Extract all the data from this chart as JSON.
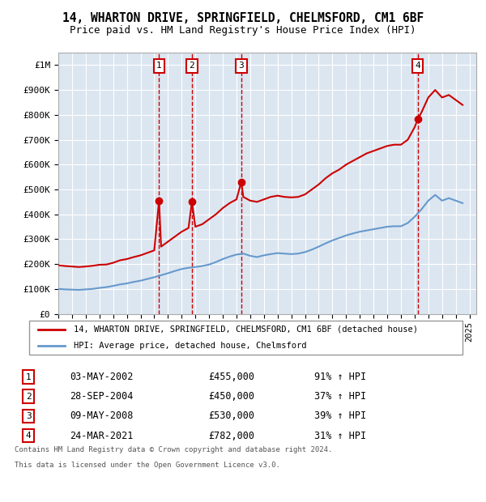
{
  "title1": "14, WHARTON DRIVE, SPRINGFIELD, CHELMSFORD, CM1 6BF",
  "title2": "Price paid vs. HM Land Registry's House Price Index (HPI)",
  "background_color": "#dce6f1",
  "plot_bg_color": "#dce6f1",
  "red_color": "#cc0000",
  "blue_color": "#6699cc",
  "ylabel_top": "£1M",
  "yticks": [
    0,
    100000,
    200000,
    300000,
    400000,
    500000,
    600000,
    700000,
    800000,
    900000,
    1000000
  ],
  "ytick_labels": [
    "£0",
    "£100K",
    "£200K",
    "£300K",
    "£400K",
    "£500K",
    "£600K",
    "£700K",
    "£800K",
    "£900K",
    "£1M"
  ],
  "transactions": [
    {
      "label": "1",
      "date": "03-MAY-2002",
      "price": 455000,
      "hpi_pct": "91%",
      "x_year": 2002.35
    },
    {
      "label": "2",
      "date": "28-SEP-2004",
      "price": 450000,
      "hpi_pct": "37%",
      "x_year": 2004.75
    },
    {
      "label": "3",
      "date": "09-MAY-2008",
      "price": 530000,
      "hpi_pct": "39%",
      "x_year": 2008.35
    },
    {
      "label": "4",
      "date": "24-MAR-2021",
      "price": 782000,
      "hpi_pct": "31%",
      "x_year": 2021.22
    }
  ],
  "legend_line1": "14, WHARTON DRIVE, SPRINGFIELD, CHELMSFORD, CM1 6BF (detached house)",
  "legend_line2": "HPI: Average price, detached house, Chelmsford",
  "footer1": "Contains HM Land Registry data © Crown copyright and database right 2024.",
  "footer2": "This data is licensed under the Open Government Licence v3.0.",
  "xlim": [
    1995,
    2025.5
  ],
  "ylim": [
    0,
    1050000
  ],
  "red_hpi_data": {
    "years": [
      1995.0,
      1995.5,
      1996.0,
      1996.5,
      1997.0,
      1997.5,
      1998.0,
      1998.5,
      1999.0,
      1999.5,
      2000.0,
      2000.5,
      2001.0,
      2001.5,
      2002.0,
      2002.35,
      2002.5,
      2003.0,
      2003.5,
      2004.0,
      2004.5,
      2004.75,
      2005.0,
      2005.5,
      2006.0,
      2006.5,
      2007.0,
      2007.5,
      2008.0,
      2008.35,
      2008.5,
      2009.0,
      2009.5,
      2010.0,
      2010.5,
      2011.0,
      2011.5,
      2012.0,
      2012.5,
      2013.0,
      2013.5,
      2014.0,
      2014.5,
      2015.0,
      2015.5,
      2016.0,
      2016.5,
      2017.0,
      2017.5,
      2018.0,
      2018.5,
      2019.0,
      2019.5,
      2020.0,
      2020.5,
      2021.0,
      2021.22,
      2021.5,
      2022.0,
      2022.5,
      2023.0,
      2023.5,
      2024.0,
      2024.5
    ],
    "values": [
      195000,
      192000,
      190000,
      188000,
      190000,
      193000,
      197000,
      198000,
      205000,
      215000,
      220000,
      228000,
      235000,
      245000,
      255000,
      455000,
      270000,
      290000,
      310000,
      330000,
      345000,
      450000,
      350000,
      360000,
      380000,
      400000,
      425000,
      445000,
      460000,
      530000,
      470000,
      455000,
      450000,
      460000,
      470000,
      475000,
      470000,
      468000,
      470000,
      480000,
      500000,
      520000,
      545000,
      565000,
      580000,
      600000,
      615000,
      630000,
      645000,
      655000,
      665000,
      675000,
      680000,
      680000,
      700000,
      750000,
      782000,
      810000,
      870000,
      900000,
      870000,
      880000,
      860000,
      840000
    ]
  },
  "blue_hpi_data": {
    "years": [
      1995.0,
      1995.5,
      1996.0,
      1996.5,
      1997.0,
      1997.5,
      1998.0,
      1998.5,
      1999.0,
      1999.5,
      2000.0,
      2000.5,
      2001.0,
      2001.5,
      2002.0,
      2002.5,
      2003.0,
      2003.5,
      2004.0,
      2004.5,
      2005.0,
      2005.5,
      2006.0,
      2006.5,
      2007.0,
      2007.5,
      2008.0,
      2008.5,
      2009.0,
      2009.5,
      2010.0,
      2010.5,
      2011.0,
      2011.5,
      2012.0,
      2012.5,
      2013.0,
      2013.5,
      2014.0,
      2014.5,
      2015.0,
      2015.5,
      2016.0,
      2016.5,
      2017.0,
      2017.5,
      2018.0,
      2018.5,
      2019.0,
      2019.5,
      2020.0,
      2020.5,
      2021.0,
      2021.5,
      2022.0,
      2022.5,
      2023.0,
      2023.5,
      2024.0,
      2024.5
    ],
    "values": [
      100000,
      98000,
      97000,
      96000,
      98000,
      100000,
      104000,
      107000,
      112000,
      118000,
      122000,
      128000,
      133000,
      140000,
      147000,
      155000,
      163000,
      172000,
      180000,
      185000,
      188000,
      192000,
      198000,
      208000,
      220000,
      230000,
      238000,
      242000,
      233000,
      228000,
      235000,
      240000,
      244000,
      242000,
      240000,
      242000,
      248000,
      258000,
      270000,
      283000,
      295000,
      305000,
      315000,
      323000,
      330000,
      335000,
      340000,
      345000,
      350000,
      352000,
      352000,
      365000,
      390000,
      420000,
      455000,
      478000,
      455000,
      465000,
      455000,
      445000
    ]
  }
}
